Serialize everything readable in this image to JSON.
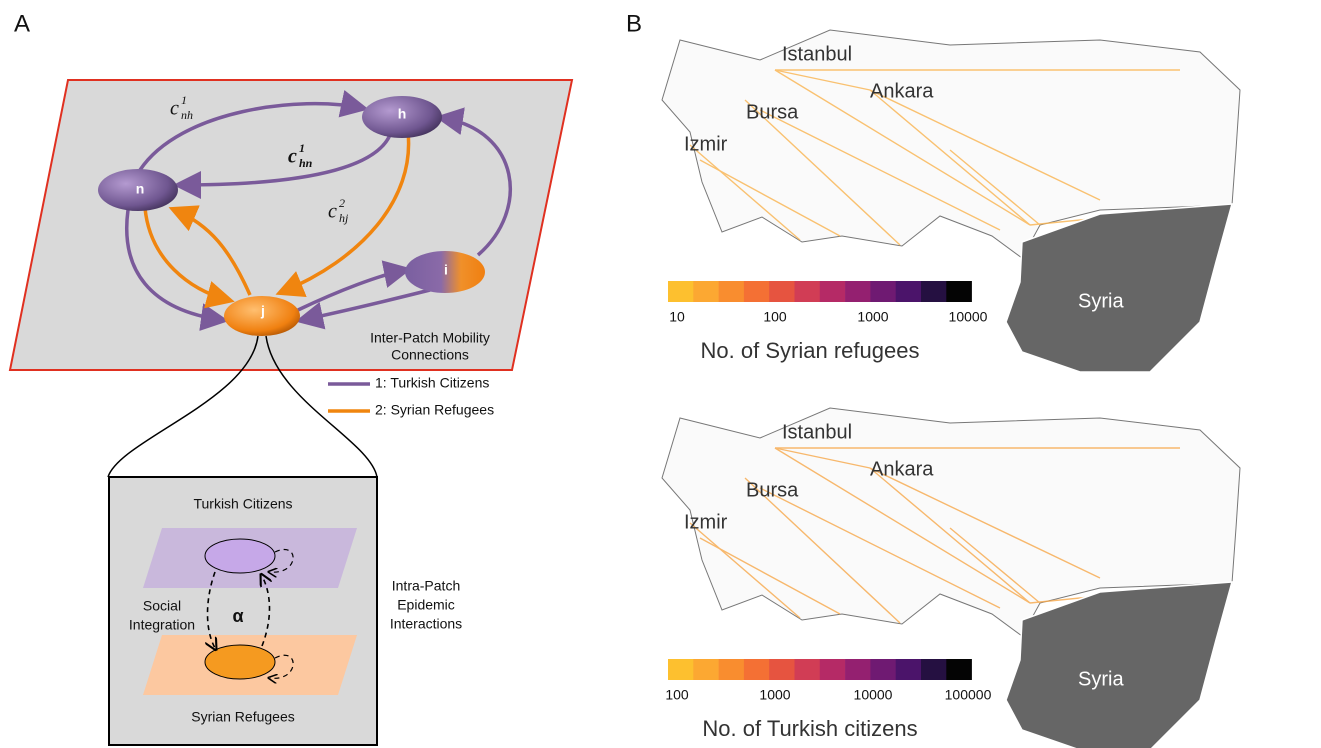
{
  "panel_a": {
    "label": "A",
    "nodes": [
      {
        "label": "h"
      },
      {
        "label": "n"
      },
      {
        "label": "i"
      },
      {
        "label": "j"
      }
    ],
    "edge_labels": [
      {
        "base": "c",
        "sup": "1",
        "sub": "nh"
      },
      {
        "base": "c",
        "sup": "1",
        "sub": "hn"
      },
      {
        "base": "c",
        "sup": "2",
        "sub": "hj"
      }
    ],
    "caption": [
      "Inter-Patch Mobility",
      "Connections"
    ],
    "legend": [
      "1: Turkish Citizens",
      "2: Syrian Refugees"
    ],
    "inset": {
      "top_layer": "Turkish Citizens",
      "bottom_layer": "Syrian Refugees",
      "coupling": "α",
      "left_label": [
        "Social",
        "Integration"
      ],
      "right_label": [
        "Intra-Patch",
        "Epidemic",
        "Interactions"
      ]
    }
  },
  "panel_b": {
    "label": "B",
    "maps": [
      {
        "cities": [
          "Istanbul",
          "Ankara",
          "Bursa",
          "Izmir"
        ],
        "country": "Syria",
        "scale_ticks": [
          "10",
          "100",
          "1000",
          "10000"
        ],
        "scale_title": "No. of Syrian refugees"
      },
      {
        "cities": [
          "Istanbul",
          "Ankara",
          "Bursa",
          "Izmir"
        ],
        "country": "Syria",
        "scale_ticks": [
          "100",
          "1000",
          "10000",
          "100000"
        ],
        "scale_title": "No. of Turkish citizens"
      }
    ]
  }
}
